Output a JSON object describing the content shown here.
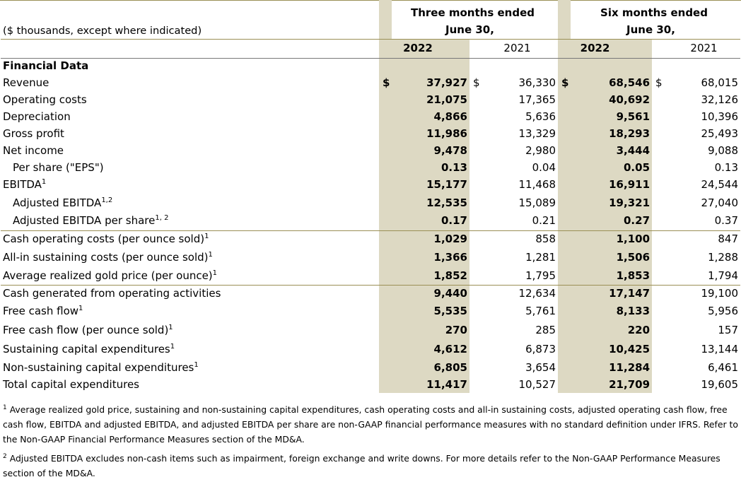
{
  "header": {
    "unit_note": "($ thousands, except where indicated)",
    "three_months_line1": "Three months ended",
    "three_months_line2": "June 30,",
    "six_months_line1": "Six months ended",
    "six_months_line2": "June 30,",
    "years": [
      "2022",
      "2021",
      "2022",
      "2021"
    ]
  },
  "section_title": "Financial Data",
  "currency_symbol": "$",
  "rows": [
    {
      "label": "Revenue",
      "sup": "",
      "values": [
        "37,927",
        "36,330",
        "68,546",
        "68,015"
      ]
    },
    {
      "label": "Operating costs",
      "sup": "",
      "values": [
        "21,075",
        "17,365",
        "40,692",
        "32,126"
      ]
    },
    {
      "label": "Depreciation",
      "sup": "",
      "values": [
        "4,866",
        "5,636",
        "9,561",
        "10,396"
      ]
    },
    {
      "label": "Gross profit",
      "sup": "",
      "values": [
        "11,986",
        "13,329",
        "18,293",
        "25,493"
      ]
    },
    {
      "label": "Net income",
      "sup": "",
      "values": [
        "9,478",
        "2,980",
        "3,444",
        "9,088"
      ]
    },
    {
      "label": "Per share (\"EPS\")",
      "sup": "",
      "values": [
        "0.13",
        "0.04",
        "0.05",
        "0.13"
      ]
    },
    {
      "label": "EBITDA",
      "sup": "1",
      "values": [
        "15,177",
        "11,468",
        "16,911",
        "24,544"
      ]
    },
    {
      "label": "Adjusted EBITDA",
      "sup": "1,2",
      "values": [
        "12,535",
        "15,089",
        "19,321",
        "27,040"
      ]
    },
    {
      "label": "Adjusted EBITDA per share",
      "sup": "1, 2",
      "values": [
        "0.17",
        "0.21",
        "0.27",
        "0.37"
      ]
    },
    {
      "label": "Cash operating costs (per ounce sold)",
      "sup": "1",
      "values": [
        "1,029",
        "858",
        "1,100",
        "847"
      ]
    },
    {
      "label": "All-in sustaining costs (per ounce sold)",
      "sup": "1",
      "values": [
        "1,366",
        "1,281",
        "1,506",
        "1,288"
      ]
    },
    {
      "label": "Average realized gold price (per ounce)",
      "sup": "1",
      "values": [
        "1,852",
        "1,795",
        "1,853",
        "1,794"
      ]
    },
    {
      "label": "Cash generated from operating activities",
      "sup": "",
      "values": [
        "9,440",
        "12,634",
        "17,147",
        "19,100"
      ]
    },
    {
      "label": "Free cash flow",
      "sup": "1",
      "values": [
        "5,535",
        "5,761",
        "8,133",
        "5,956"
      ]
    },
    {
      "label": "Free cash flow (per ounce sold)",
      "sup": "1",
      "values": [
        "270",
        "285",
        "220",
        "157"
      ]
    },
    {
      "label": "Sustaining capital expenditures",
      "sup": "1",
      "values": [
        "4,612",
        "6,873",
        "10,425",
        "13,144"
      ]
    },
    {
      "label": "Non-sustaining capital expenditures",
      "sup": "1",
      "values": [
        "6,805",
        "3,654",
        "11,284",
        "6,461"
      ]
    },
    {
      "label": "Total capital expenditures",
      "sup": "",
      "values": [
        "11,417",
        "10,527",
        "21,709",
        "19,605"
      ]
    }
  ],
  "footnotes": [
    {
      "mark": "1",
      "text": "Average realized gold price, sustaining and non-sustaining capital expenditures, cash operating costs and all-in sustaining costs, adjusted operating cash flow, free cash flow, EBITDA and adjusted EBITDA, and adjusted EBITDA per share are non-GAAP financial performance measures with no standard definition under IFRS. Refer to the Non-GAAP Financial Performance Measures section of the MD&A."
    },
    {
      "mark": "2",
      "text": "Adjusted EBITDA excludes non-cash items such as impairment, foreign exchange and write downs. For more details refer to the Non-GAAP Performance Measures section of the MD&A."
    }
  ],
  "colors": {
    "highlight": "#ddd9c3",
    "rule": "#9a8f55"
  }
}
